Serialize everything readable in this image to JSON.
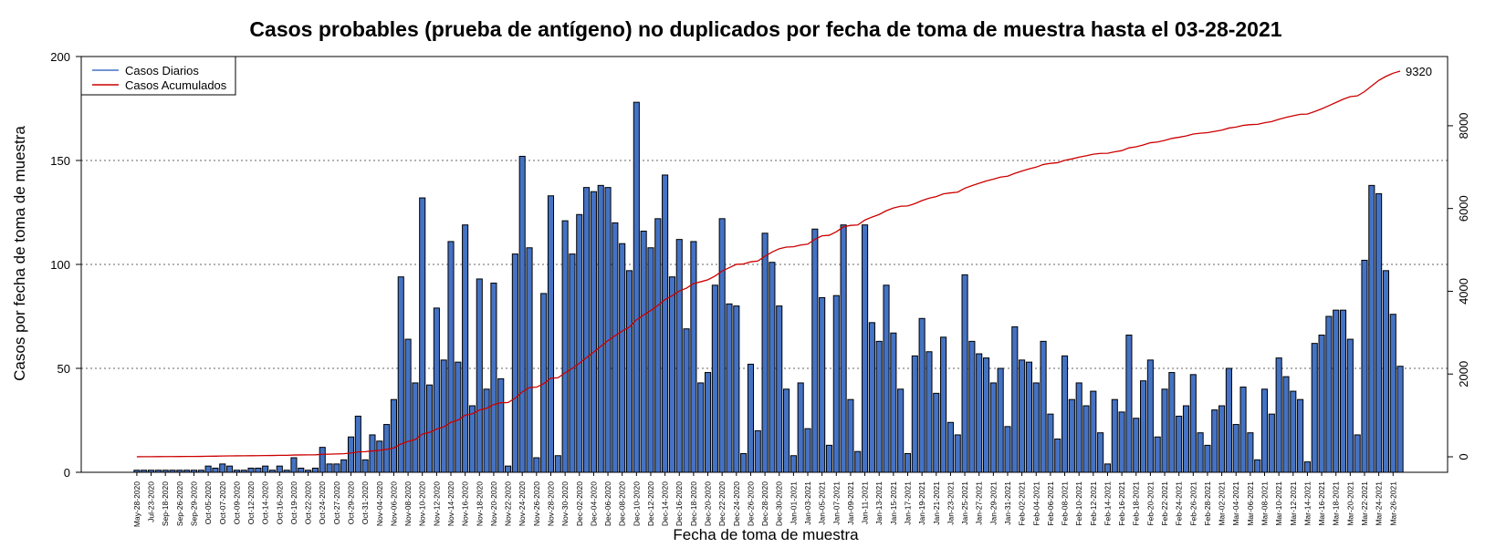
{
  "chart_data": {
    "type": "bar",
    "title": "Casos probables (prueba de antígeno) no duplicados por fecha de toma de muestra hasta el 03-28-2021",
    "xlabel": "Fecha de toma de muestra",
    "ylabel": "Casos por fecha de toma de muestra",
    "ylim": [
      0,
      200
    ],
    "yticks": [
      0,
      50,
      100,
      150,
      200
    ],
    "y2lim": [
      0,
      9320
    ],
    "y2ticks": [
      0,
      2000,
      4000,
      6000,
      8000
    ],
    "grid": "horizontal dotted",
    "legend_position": "top-left",
    "x_tick_labels": [
      "May-28-2020",
      "Jul-23-2020",
      "Sep-18-2020",
      "Sep-26-2020",
      "Sep-29-2020",
      "Oct-05-2020",
      "Oct-07-2020",
      "Oct-09-2020",
      "Oct-12-2020",
      "Oct-14-2020",
      "Oct-16-2020",
      "Oct-19-2020",
      "Oct-22-2020",
      "Oct-24-2020",
      "Oct-27-2020",
      "Oct-29-2020",
      "Oct-31-2020",
      "Nov-04-2020",
      "Nov-06-2020",
      "Nov-08-2020",
      "Nov-10-2020",
      "Nov-12-2020",
      "Nov-14-2020",
      "Nov-16-2020",
      "Nov-18-2020",
      "Nov-20-2020",
      "Nov-22-2020",
      "Nov-24-2020",
      "Nov-26-2020",
      "Nov-28-2020",
      "Nov-30-2020",
      "Dec-02-2020",
      "Dec-04-2020",
      "Dec-06-2020",
      "Dec-08-2020",
      "Dec-10-2020",
      "Dec-12-2020",
      "Dec-14-2020",
      "Dec-16-2020",
      "Dec-18-2020",
      "Dec-20-2020",
      "Dec-22-2020",
      "Dec-24-2020",
      "Dec-26-2020",
      "Dec-28-2020",
      "Dec-30-2020",
      "Jan-01-2021",
      "Jan-03-2021",
      "Jan-05-2021",
      "Jan-07-2021",
      "Jan-09-2021",
      "Jan-11-2021",
      "Jan-13-2021",
      "Jan-15-2021",
      "Jan-17-2021",
      "Jan-19-2021",
      "Jan-21-2021",
      "Jan-23-2021",
      "Jan-25-2021",
      "Jan-27-2021",
      "Jan-29-2021",
      "Jan-31-2021",
      "Feb-02-2021",
      "Feb-04-2021",
      "Feb-06-2021",
      "Feb-08-2021",
      "Feb-10-2021",
      "Feb-12-2021",
      "Feb-14-2021",
      "Feb-16-2021",
      "Feb-18-2021",
      "Feb-20-2021",
      "Feb-22-2021",
      "Feb-24-2021",
      "Feb-26-2021",
      "Feb-28-2021",
      "Mar-02-2021",
      "Mar-04-2021",
      "Mar-06-2021",
      "Mar-08-2021",
      "Mar-10-2021",
      "Mar-12-2021",
      "Mar-14-2021",
      "Mar-16-2021",
      "Mar-18-2021",
      "Mar-20-2021",
      "Mar-22-2021",
      "Mar-24-2021",
      "Mar-26-2021"
    ],
    "series": [
      {
        "name": "Casos Diarios",
        "type": "bar",
        "color": "#4472C4",
        "values": [
          1,
          1,
          1,
          1,
          1,
          1,
          1,
          1,
          1,
          1,
          3,
          2,
          4,
          3,
          1,
          1,
          2,
          2,
          3,
          1,
          3,
          1,
          7,
          2,
          1,
          2,
          12,
          4,
          4,
          6,
          17,
          27,
          6,
          18,
          15,
          23,
          35,
          94,
          64,
          43,
          132,
          42,
          79,
          54,
          111,
          53,
          119,
          32,
          93,
          40,
          91,
          45,
          3,
          105,
          152,
          108,
          7,
          86,
          133,
          8,
          121,
          105,
          124,
          137,
          135,
          138,
          137,
          120,
          110,
          97,
          178,
          116,
          108,
          122,
          143,
          94,
          112,
          69,
          111,
          43,
          48,
          90,
          122,
          81,
          80,
          9,
          52,
          20,
          115,
          101,
          80,
          40,
          8,
          43,
          21,
          117,
          84,
          13,
          85,
          119,
          35,
          10,
          119,
          72,
          63,
          90,
          67,
          40,
          9,
          56,
          74,
          58,
          38,
          65,
          24,
          18,
          95,
          63,
          57,
          55,
          43,
          50,
          22,
          70,
          54,
          53,
          43,
          63,
          28,
          16,
          56,
          35,
          43,
          32,
          39,
          19,
          4,
          35,
          29,
          66,
          26,
          44,
          54,
          17,
          40,
          48,
          27,
          32,
          47,
          19,
          13,
          30,
          32,
          50,
          23,
          41,
          19,
          6,
          40,
          28,
          55,
          46,
          39,
          35,
          5,
          62,
          66,
          75,
          78,
          78,
          64,
          18,
          102,
          138,
          134,
          97,
          76,
          51
        ]
      },
      {
        "name": "Casos Acumulados",
        "type": "line",
        "color": "#CC0000",
        "final_value": 9320
      }
    ]
  },
  "legend": {
    "daily_label": "Casos Diarios",
    "cumulative_label": "Casos Acumulados"
  },
  "end_label": "9320"
}
